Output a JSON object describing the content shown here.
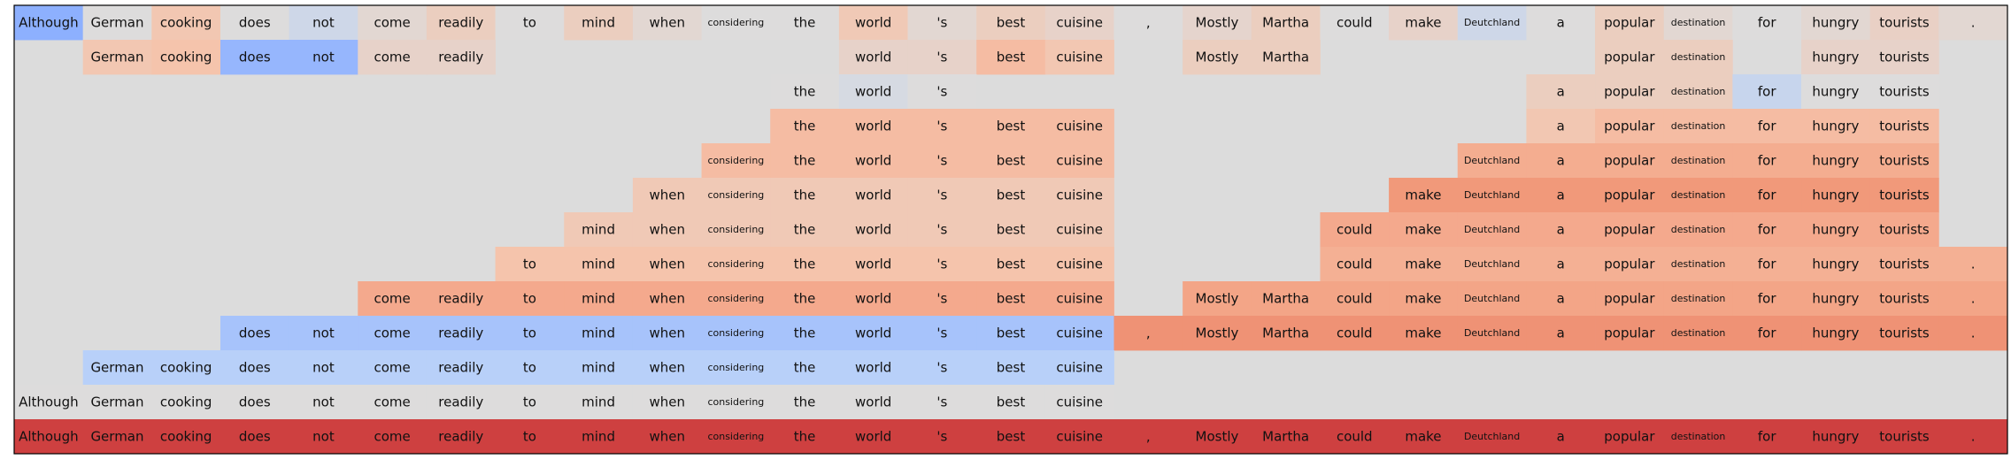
{
  "chart_data": {
    "type": "heatmap",
    "title": "",
    "xlabel": "",
    "ylabel": "",
    "grid": false,
    "legend": "none",
    "background_color": "#dcdcdc",
    "frame_color": "#000000",
    "tokens": [
      "Although",
      "German",
      "cooking",
      "does",
      "not",
      "come",
      "readily",
      "to",
      "mind",
      "when",
      "considering",
      "the",
      "world",
      "'s",
      "best",
      "cuisine",
      ",",
      "Mostly",
      "Martha",
      "could",
      "make",
      "Deutchland",
      "a",
      "popular",
      "destination",
      "for",
      "hungry",
      "tourists",
      "."
    ],
    "small_tokens": [
      "considering",
      "destination",
      "Deutchland"
    ],
    "color_scale": {
      "name": "coolwarm",
      "min": -1,
      "max": 1,
      "stops": [
        [
          0.0,
          "#3b4cc0"
        ],
        [
          0.125,
          "#6282ea"
        ],
        [
          0.25,
          "#8db0fe"
        ],
        [
          0.375,
          "#b8d0f9"
        ],
        [
          0.5,
          "#dddcdc"
        ],
        [
          0.625,
          "#f5c4ac"
        ],
        [
          0.75,
          "#f39d7e"
        ],
        [
          0.875,
          "#e06851"
        ],
        [
          1.0,
          "#b40426"
        ]
      ]
    },
    "rows": [
      {
        "tokens": [
          0,
          1,
          2,
          3,
          4,
          5,
          6,
          7,
          8,
          9,
          10,
          11,
          12,
          13,
          14,
          15,
          16,
          17,
          18,
          19,
          20,
          21,
          22,
          23,
          24,
          25,
          26,
          27,
          28
        ],
        "values": [
          -0.5,
          0,
          0.22,
          0,
          -0.1,
          0.05,
          0.15,
          0,
          0.15,
          0.05,
          0,
          0,
          0.2,
          0.05,
          0.15,
          0.1,
          0,
          0.08,
          0.15,
          0,
          0.1,
          -0.1,
          0,
          0.15,
          0.05,
          0,
          0.05,
          0.12,
          0.05
        ]
      },
      {
        "tokens": [
          1,
          2,
          3,
          4,
          5,
          6,
          12,
          13,
          14,
          15,
          17,
          18,
          23,
          24,
          26,
          27
        ],
        "values": [
          0.22,
          0.25,
          -0.45,
          -0.45,
          0.1,
          0.1,
          0.1,
          0.1,
          0.3,
          0.22,
          0.15,
          0.15,
          0.15,
          0.15,
          0.1,
          0.1
        ]
      },
      {
        "tokens": [
          11,
          12,
          13,
          22,
          23,
          24,
          25,
          26,
          27
        ],
        "values": [
          0,
          -0.05,
          0,
          0.15,
          0.15,
          0.15,
          -0.15,
          0,
          0
        ]
      },
      {
        "tokens": [
          11,
          12,
          13,
          14,
          15,
          22,
          23,
          24,
          25,
          26,
          27
        ],
        "values": [
          0.3,
          0.3,
          0.3,
          0.3,
          0.3,
          0.22,
          0.3,
          0.3,
          0.3,
          0.3,
          0.3
        ]
      },
      {
        "tokens": [
          10,
          11,
          12,
          13,
          14,
          15,
          21,
          22,
          23,
          24,
          25,
          26,
          27
        ],
        "values": [
          0.3,
          0.3,
          0.3,
          0.3,
          0.3,
          0.3,
          0.4,
          0.4,
          0.4,
          0.4,
          0.4,
          0.4,
          0.4
        ]
      },
      {
        "tokens": [
          9,
          10,
          11,
          12,
          13,
          14,
          15,
          20,
          21,
          22,
          23,
          24,
          25,
          26,
          27
        ],
        "values": [
          0.2,
          0.2,
          0.2,
          0.2,
          0.2,
          0.2,
          0.2,
          0.52,
          0.52,
          0.52,
          0.52,
          0.52,
          0.52,
          0.52,
          0.52
        ]
      },
      {
        "tokens": [
          8,
          9,
          10,
          11,
          12,
          13,
          14,
          15,
          19,
          20,
          21,
          22,
          23,
          24,
          25,
          26,
          27
        ],
        "values": [
          0.2,
          0.2,
          0.2,
          0.2,
          0.2,
          0.2,
          0.2,
          0.2,
          0.42,
          0.42,
          0.42,
          0.42,
          0.42,
          0.42,
          0.42,
          0.42,
          0.42
        ]
      },
      {
        "tokens": [
          7,
          8,
          9,
          10,
          11,
          12,
          13,
          14,
          15,
          19,
          20,
          21,
          22,
          23,
          24,
          25,
          26,
          27,
          28
        ],
        "values": [
          0.25,
          0.25,
          0.25,
          0.25,
          0.25,
          0.25,
          0.25,
          0.25,
          0.25,
          0.38,
          0.38,
          0.38,
          0.38,
          0.38,
          0.38,
          0.38,
          0.38,
          0.38,
          0.38
        ]
      },
      {
        "tokens": [
          5,
          6,
          7,
          8,
          9,
          10,
          11,
          12,
          13,
          14,
          15,
          17,
          18,
          19,
          20,
          21,
          22,
          23,
          24,
          25,
          26,
          27,
          28
        ],
        "values": [
          0.42,
          0.42,
          0.42,
          0.42,
          0.42,
          0.42,
          0.42,
          0.42,
          0.42,
          0.42,
          0.42,
          0.45,
          0.45,
          0.45,
          0.45,
          0.45,
          0.45,
          0.45,
          0.45,
          0.45,
          0.45,
          0.45,
          0.45
        ]
      },
      {
        "tokens": [
          3,
          4,
          5,
          6,
          7,
          8,
          9,
          10,
          11,
          12,
          13,
          14,
          15,
          16,
          17,
          18,
          19,
          20,
          21,
          22,
          23,
          24,
          25,
          26,
          27,
          28
        ],
        "values": [
          -0.35,
          -0.35,
          -0.35,
          -0.35,
          -0.35,
          -0.35,
          -0.35,
          -0.35,
          -0.35,
          -0.35,
          -0.35,
          -0.35,
          -0.35,
          0.55,
          0.55,
          0.55,
          0.55,
          0.55,
          0.55,
          0.55,
          0.55,
          0.55,
          0.55,
          0.55,
          0.55,
          0.55
        ]
      },
      {
        "tokens": [
          1,
          2,
          3,
          4,
          5,
          6,
          7,
          8,
          9,
          10,
          11,
          12,
          13,
          14,
          15
        ],
        "values": [
          -0.25,
          -0.25,
          -0.25,
          -0.25,
          -0.25,
          -0.25,
          -0.25,
          -0.25,
          -0.25,
          -0.25,
          -0.25,
          -0.25,
          -0.25,
          -0.25,
          -0.25
        ]
      },
      {
        "tokens": [
          0,
          1,
          2,
          3,
          4,
          5,
          6,
          7,
          8,
          9,
          10,
          11,
          12,
          13,
          14,
          15
        ],
        "values": [
          0,
          0,
          0,
          0,
          0,
          0,
          0,
          0,
          0,
          0,
          0,
          0,
          0,
          0,
          0,
          0
        ]
      },
      {
        "tokens": [
          0,
          1,
          2,
          3,
          4,
          5,
          6,
          7,
          8,
          9,
          10,
          11,
          12,
          13,
          14,
          15,
          16,
          17,
          18,
          19,
          20,
          21,
          22,
          23,
          24,
          25,
          26,
          27,
          28
        ],
        "values": [
          0.85,
          0.85,
          0.85,
          0.85,
          0.85,
          0.85,
          0.85,
          0.85,
          0.85,
          0.85,
          0.85,
          0.85,
          0.85,
          0.85,
          0.85,
          0.85,
          0.85,
          0.85,
          0.85,
          0.85,
          0.85,
          0.85,
          0.85,
          0.85,
          0.85,
          0.85,
          0.85,
          0.85,
          0.85
        ]
      }
    ]
  }
}
